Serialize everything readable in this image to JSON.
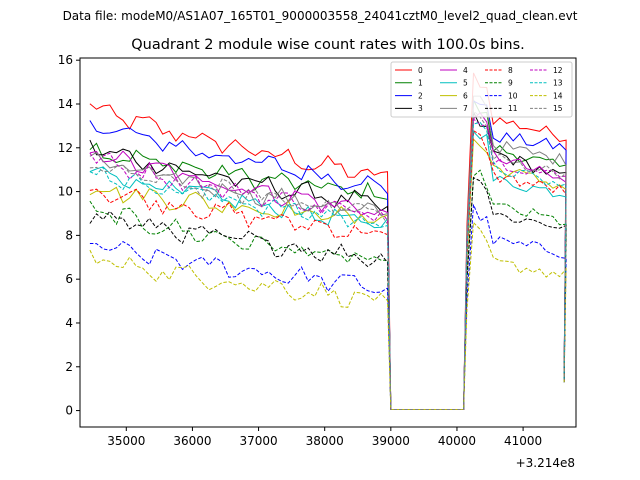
{
  "figure": {
    "suptitle": "Data file: modeM0/AS1A07_165T01_9000003558_24041cztM0_level2_quad_clean.evt"
  },
  "chart_data": {
    "type": "line",
    "title": "Quadrant 2 module wise count rates with 100.0s bins.",
    "xlabel": "",
    "ylabel": "",
    "x_offset_label": "+3.214e8",
    "xlim": [
      34300,
      41800
    ],
    "ylim": [
      -0.75,
      16.1
    ],
    "xticks": [
      35000,
      36000,
      37000,
      38000,
      39000,
      40000,
      41000
    ],
    "xtick_labels": [
      "35000",
      "36000",
      "37000",
      "38000",
      "39000",
      "40000",
      "41000"
    ],
    "yticks": [
      0,
      2,
      4,
      6,
      8,
      10,
      12,
      14,
      16
    ],
    "ytick_labels": [
      "0",
      "2",
      "4",
      "6",
      "8",
      "10",
      "12",
      "14",
      "16"
    ],
    "grid": false,
    "legend_position": "top-right",
    "legend_columns": 4,
    "segments": [
      {
        "x_start": 34450,
        "x_end": 38950
      },
      {
        "x_start": 39000,
        "x_end": 40100
      },
      {
        "x_start": 40150,
        "x_end": 41600
      }
    ],
    "series": [
      {
        "name": "0",
        "color": "#ff0000",
        "dash": "solid",
        "seg1": [
          13.9,
          10.6
        ],
        "gap": 0.05,
        "seg2": [
          15.3,
          13.4,
          12.5
        ]
      },
      {
        "name": "1",
        "color": "#008000",
        "dash": "solid",
        "seg1": [
          12.0,
          9.8
        ],
        "gap": 0.05,
        "seg2": [
          14.0,
          12.1,
          11.0
        ]
      },
      {
        "name": "2",
        "color": "#0000ff",
        "dash": "solid",
        "seg1": [
          13.2,
          10.2
        ],
        "gap": 0.05,
        "seg2": [
          14.3,
          12.6,
          12.0
        ]
      },
      {
        "name": "3",
        "color": "#000000",
        "dash": "solid",
        "seg1": [
          12.1,
          9.3
        ],
        "gap": 0.05,
        "seg2": [
          13.4,
          11.9,
          10.6
        ]
      },
      {
        "name": "4",
        "color": "#bf00bf",
        "dash": "solid",
        "seg1": [
          11.9,
          9.0
        ],
        "gap": 0.05,
        "seg2": [
          13.6,
          11.8,
          10.4
        ]
      },
      {
        "name": "5",
        "color": "#00bfbf",
        "dash": "solid",
        "seg1": [
          11.1,
          8.4
        ],
        "gap": 0.05,
        "seg2": [
          13.0,
          10.6,
          9.9
        ]
      },
      {
        "name": "6",
        "color": "#bfbf00",
        "dash": "solid",
        "seg1": [
          10.2,
          8.7
        ],
        "gap": 0.05,
        "seg2": [
          12.4,
          11.2,
          10.2
        ]
      },
      {
        "name": "7",
        "color": "#808080",
        "dash": "solid",
        "seg1": [
          11.5,
          8.9
        ],
        "gap": 0.05,
        "seg2": [
          14.6,
          12.2,
          11.4
        ]
      },
      {
        "name": "8",
        "color": "#ff0000",
        "dash": "dashed",
        "seg1": [
          10.2,
          8.0
        ],
        "gap": 0.05,
        "seg2": [
          12.7,
          10.8,
          10.0
        ]
      },
      {
        "name": "9",
        "color": "#008000",
        "dash": "dashed",
        "seg1": [
          9.2,
          6.7
        ],
        "gap": 0.05,
        "seg2": [
          11.0,
          9.4,
          8.6
        ]
      },
      {
        "name": "10",
        "color": "#0000ff",
        "dash": "dashed",
        "seg1": [
          7.6,
          5.6
        ],
        "gap": 0.05,
        "seg2": [
          9.2,
          7.8,
          7.2
        ]
      },
      {
        "name": "11",
        "color": "#000000",
        "dash": "dashed",
        "seg1": [
          9.0,
          6.9
        ],
        "gap": 0.05,
        "seg2": [
          10.8,
          9.0,
          8.4
        ]
      },
      {
        "name": "12",
        "color": "#bf00bf",
        "dash": "dashed",
        "seg1": [
          11.6,
          8.8
        ],
        "gap": 0.05,
        "seg2": [
          13.6,
          11.5,
          10.6
        ]
      },
      {
        "name": "13",
        "color": "#00bfbf",
        "dash": "dashed",
        "seg1": [
          11.0,
          8.5
        ],
        "gap": 0.05,
        "seg2": [
          13.2,
          11.2,
          10.2
        ]
      },
      {
        "name": "14",
        "color": "#bfbf00",
        "dash": "dashed",
        "seg1": [
          7.0,
          5.0
        ],
        "gap": 0.05,
        "seg2": [
          8.3,
          6.8,
          6.2
        ]
      },
      {
        "name": "15",
        "color": "#808080",
        "dash": "dashed",
        "seg1": [
          11.2,
          9.0
        ],
        "gap": 0.05,
        "seg2": [
          13.6,
          11.6,
          10.8
        ]
      }
    ],
    "end_values": [
      1.3,
      1.3,
      1.4,
      1.5,
      1.4,
      1.3,
      1.3,
      1.4,
      1.3,
      1.3,
      1.3,
      1.4,
      1.3,
      1.3,
      1.3,
      1.4
    ]
  }
}
